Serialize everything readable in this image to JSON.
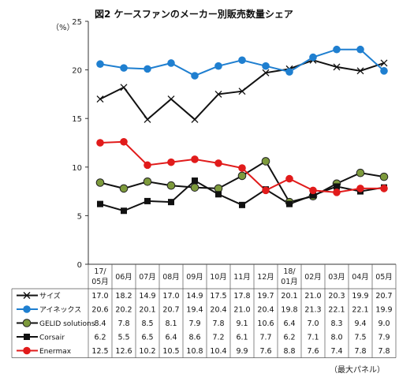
{
  "chart_data": {
    "type": "line",
    "title": "図2 ケースファンのメーカー別販売数量シェア",
    "ylabel": "（%）",
    "note": "（最大パネル）",
    "ylim": [
      0,
      25
    ],
    "yticks": [
      0,
      5,
      10,
      15,
      20,
      25
    ],
    "categories": [
      [
        "17/",
        "05月"
      ],
      [
        "06月"
      ],
      [
        "07月"
      ],
      [
        "08月"
      ],
      [
        "09月"
      ],
      [
        "10月"
      ],
      [
        "11月"
      ],
      [
        "12月"
      ],
      [
        "18/",
        "01月"
      ],
      [
        "02月"
      ],
      [
        "03月"
      ],
      [
        "04月"
      ],
      [
        "05月"
      ]
    ],
    "series": [
      {
        "name": "サイズ",
        "color": "#111111",
        "marker": "x",
        "values": [
          17.0,
          18.2,
          14.9,
          17.0,
          14.9,
          17.5,
          17.8,
          19.7,
          20.1,
          21.0,
          20.3,
          19.9,
          20.7
        ]
      },
      {
        "name": "アイネックス",
        "color": "#1f7fd0",
        "marker": "circle",
        "values": [
          20.6,
          20.2,
          20.1,
          20.7,
          19.4,
          20.4,
          21.0,
          20.4,
          19.8,
          21.3,
          22.1,
          22.1,
          19.9
        ]
      },
      {
        "name": "GELID solutions",
        "color": "#111111",
        "marker": "olive-circle",
        "values": [
          8.4,
          7.8,
          8.5,
          8.1,
          7.9,
          7.8,
          9.1,
          10.6,
          6.4,
          7.0,
          8.3,
          9.4,
          9.0
        ]
      },
      {
        "name": "Corsair",
        "color": "#111111",
        "marker": "square",
        "values": [
          6.2,
          5.5,
          6.5,
          6.4,
          8.6,
          7.2,
          6.1,
          7.7,
          6.2,
          7.1,
          8.0,
          7.5,
          7.9
        ]
      },
      {
        "name": "Enermax",
        "color": "#e11b1b",
        "marker": "red-circle",
        "values": [
          12.5,
          12.6,
          10.2,
          10.5,
          10.8,
          10.4,
          9.9,
          7.6,
          8.8,
          7.6,
          7.4,
          7.8,
          7.8
        ]
      }
    ]
  }
}
